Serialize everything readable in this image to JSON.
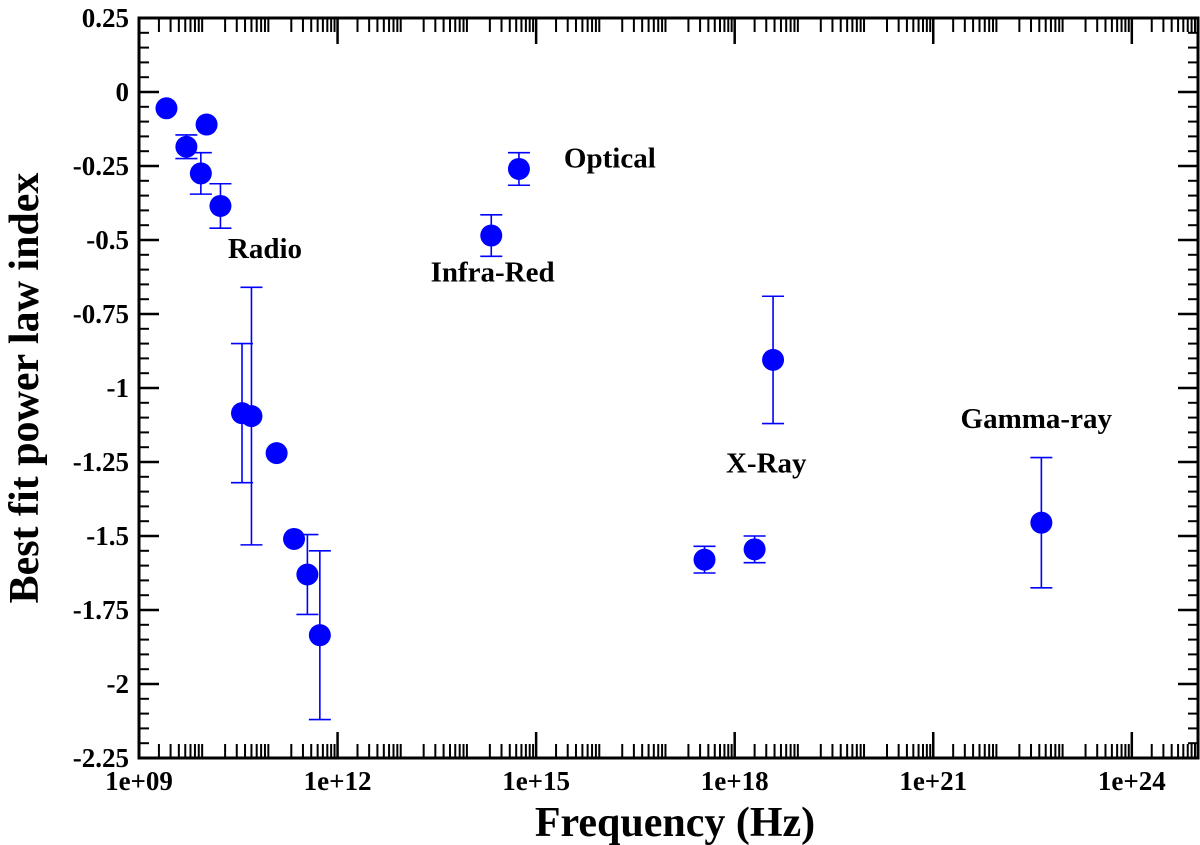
{
  "chart_data": {
    "type": "scatter",
    "xscale": "log",
    "xlabel": "Frequency (Hz)",
    "ylabel": "Best fit power law index",
    "xlim": [
      1000000000.0,
      1e+25
    ],
    "ylim": [
      -2.25,
      0.25
    ],
    "x_ticks": [
      {
        "value": 1000000000.0,
        "label": "1e+09"
      },
      {
        "value": 1000000000000.0,
        "label": "1e+12"
      },
      {
        "value": 1000000000000000.0,
        "label": "1e+15"
      },
      {
        "value": 1e+18,
        "label": "1e+18"
      },
      {
        "value": 1e+21,
        "label": "1e+21"
      },
      {
        "value": 1e+24,
        "label": "1e+24"
      }
    ],
    "y_ticks": [
      {
        "value": 0.25,
        "label": "0.25"
      },
      {
        "value": 0,
        "label": "0"
      },
      {
        "value": -0.25,
        "label": "-0.25"
      },
      {
        "value": -0.5,
        "label": "-0.5"
      },
      {
        "value": -0.75,
        "label": "-0.75"
      },
      {
        "value": -1,
        "label": "-1"
      },
      {
        "value": -1.25,
        "label": "-1.25"
      },
      {
        "value": -1.5,
        "label": "-1.5"
      },
      {
        "value": -1.75,
        "label": "-1.75"
      },
      {
        "value": -2,
        "label": "-2"
      },
      {
        "value": -2.25,
        "label": "-2.25"
      }
    ],
    "marker_color": "#0000ff",
    "points": [
      {
        "x": 2600000000.0,
        "y": -0.055,
        "err": 0
      },
      {
        "x": 5200000000.0,
        "y": -0.185,
        "err": 0.04
      },
      {
        "x": 8600000000.0,
        "y": -0.275,
        "err": 0.07
      },
      {
        "x": 10500000000.0,
        "y": -0.11,
        "err": 0
      },
      {
        "x": 17000000000.0,
        "y": -0.385,
        "err": 0.075
      },
      {
        "x": 36000000000.0,
        "y": -1.085,
        "err": 0.235
      },
      {
        "x": 50000000000.0,
        "y": -1.095,
        "err": 0.435
      },
      {
        "x": 120000000000.0,
        "y": -1.22,
        "err": 0
      },
      {
        "x": 220000000000.0,
        "y": -1.51,
        "err": 0
      },
      {
        "x": 350000000000.0,
        "y": -1.63,
        "err": 0.135
      },
      {
        "x": 540000000000.0,
        "y": -1.835,
        "err": 0.285
      },
      {
        "x": 210000000000000.0,
        "y": -0.485,
        "err": 0.07
      },
      {
        "x": 550000000000000.0,
        "y": -0.26,
        "err": 0.055
      },
      {
        "x": 3.5e+17,
        "y": -1.58,
        "err": 0.045
      },
      {
        "x": 2e+18,
        "y": -1.545,
        "err": 0.045
      },
      {
        "x": 3.8e+18,
        "y": -0.905,
        "err": 0.215
      },
      {
        "x": 4.3e+22,
        "y": -1.455,
        "err": 0.22
      }
    ],
    "annotations": [
      {
        "text": "Radio",
        "x": 80000000000.0,
        "y": -0.56
      },
      {
        "text": "Infra-Red",
        "x": 220000000000000.0,
        "y": -0.64
      },
      {
        "text": "Optical",
        "x": 1.3e+16,
        "y": -0.255
      },
      {
        "text": "X-Ray",
        "x": 3e+18,
        "y": -1.285
      },
      {
        "text": "Gamma-ray",
        "x": 3.6e+22,
        "y": -1.135
      }
    ]
  }
}
